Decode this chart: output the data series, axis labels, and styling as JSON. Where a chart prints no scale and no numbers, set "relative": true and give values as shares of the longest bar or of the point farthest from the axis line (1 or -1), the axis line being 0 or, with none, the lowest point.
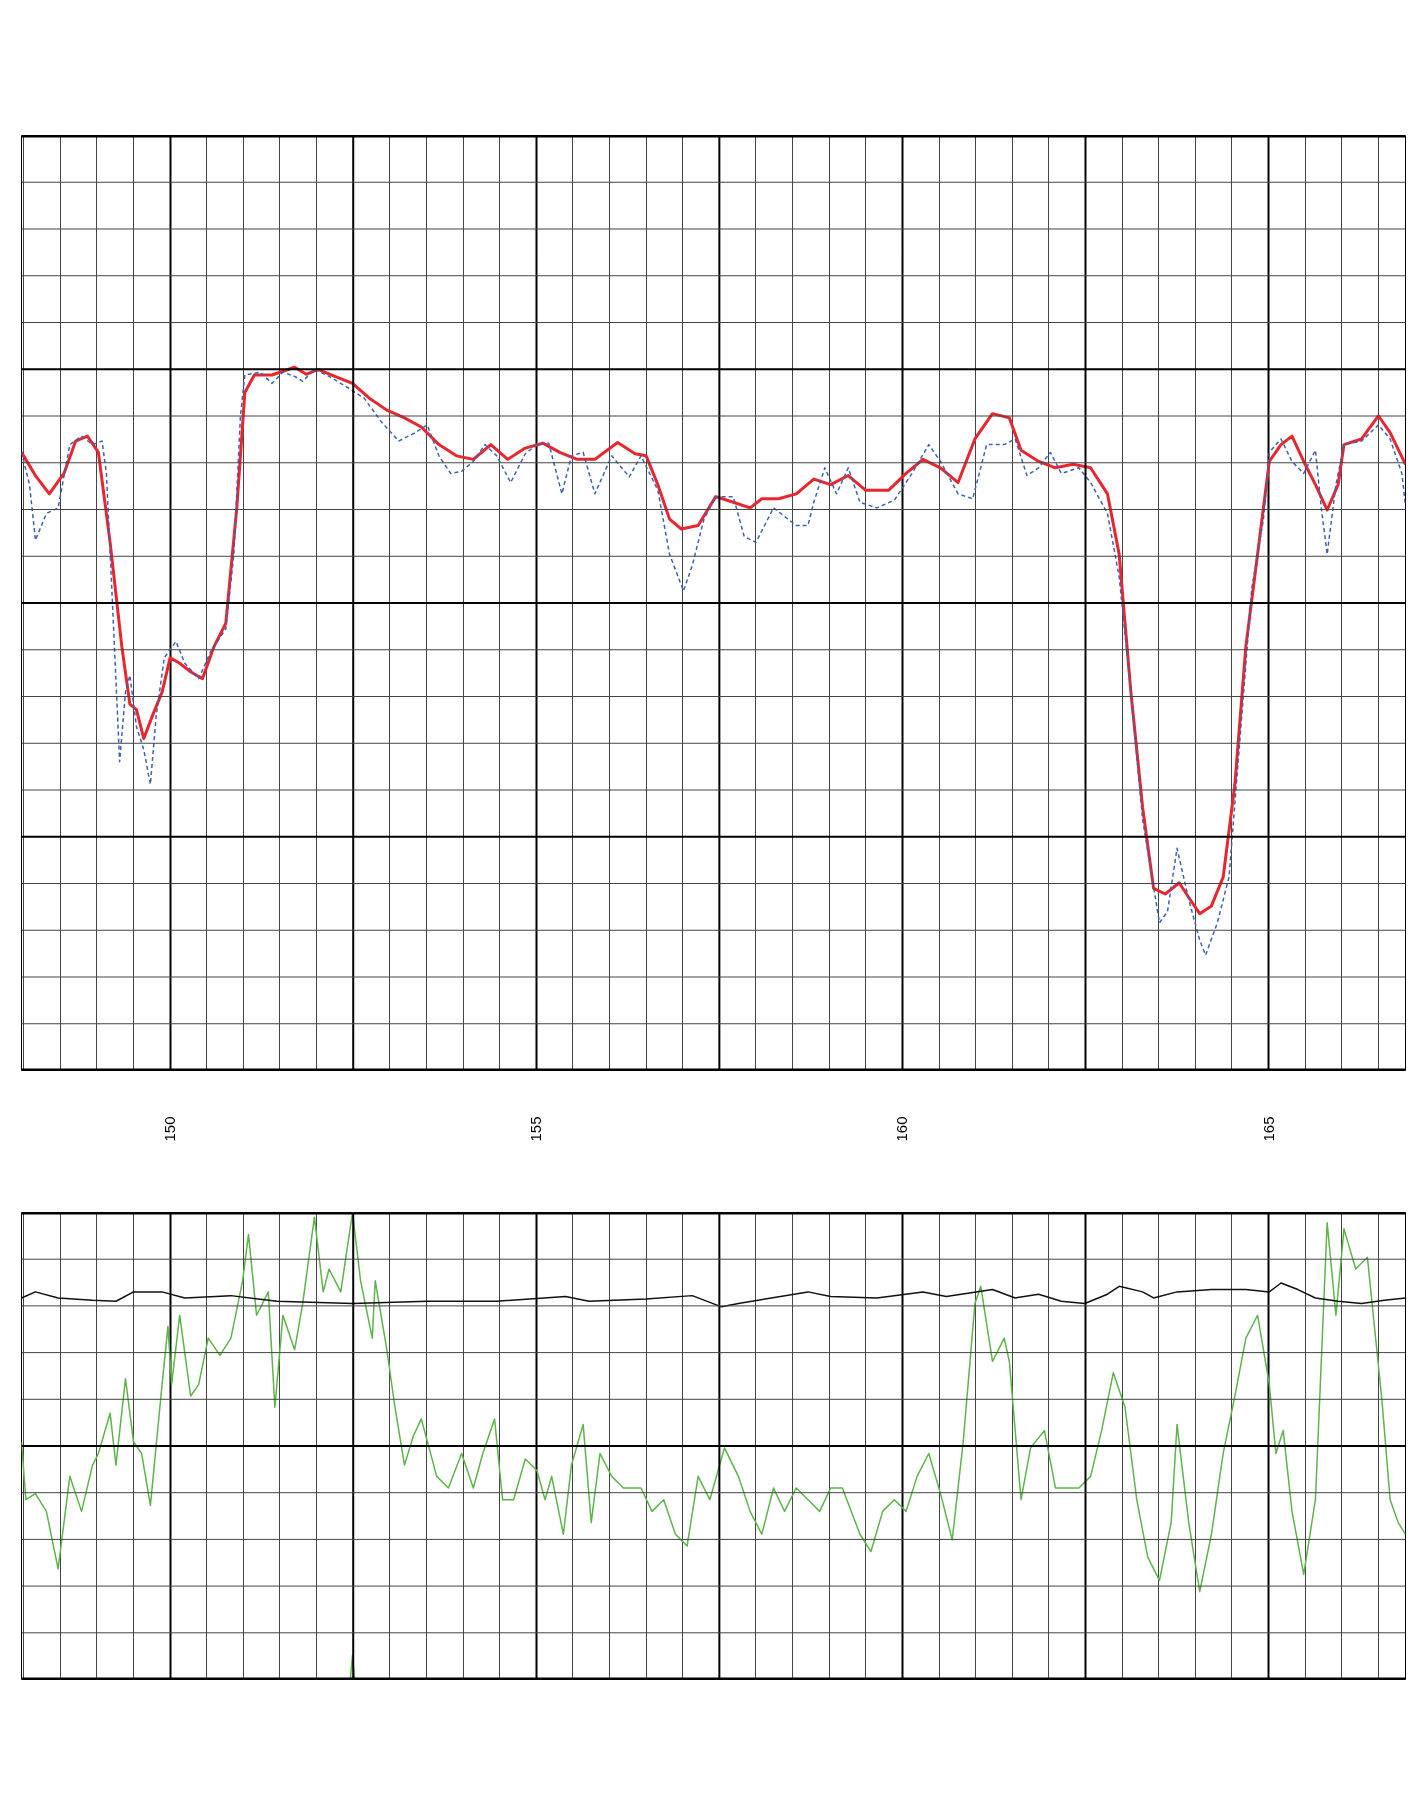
{
  "chart_data": [
    {
      "type": "line",
      "relative": true,
      "xlim": [
        147.97,
        166.87
      ],
      "xticks": [
        150,
        155,
        160,
        165
      ],
      "grid": true,
      "tick_labels": "x",
      "marker": "none",
      "series": [
        {
          "color": "#e8262d",
          "line_style": "solid",
          "x": [
            147.97,
            148.16,
            148.35,
            148.55,
            148.71,
            148.87,
            149.02,
            149.18,
            149.34,
            149.45,
            149.54,
            149.64,
            149.76,
            149.89,
            150.0,
            150.13,
            150.28,
            150.44,
            150.6,
            150.76,
            150.91,
            151.02,
            151.15,
            151.39,
            151.7,
            151.86,
            152.02,
            152.25,
            152.49,
            152.72,
            152.96,
            153.2,
            153.43,
            153.67,
            153.91,
            154.14,
            154.38,
            154.61,
            154.85,
            155.09,
            155.32,
            155.56,
            155.8,
            156.11,
            156.35,
            156.5,
            156.66,
            156.82,
            156.98,
            157.21,
            157.45,
            157.69,
            157.92,
            158.08,
            158.31,
            158.55,
            158.79,
            159.02,
            159.26,
            159.5,
            159.81,
            160.05,
            160.28,
            160.52,
            160.76,
            160.99,
            161.23,
            161.46,
            161.62,
            161.86,
            162.09,
            162.33,
            162.57,
            162.8,
            162.96,
            163.12,
            163.28,
            163.43,
            163.59,
            163.78,
            163.91,
            164.06,
            164.22,
            164.38,
            164.54,
            164.69,
            164.85,
            165.01,
            165.17,
            165.32,
            165.48,
            165.64,
            165.8,
            165.95,
            166.03,
            166.27,
            166.5,
            166.66,
            166.87
          ],
          "values": [
            0.879,
            0.846,
            0.82,
            0.849,
            0.895,
            0.902,
            0.879,
            0.751,
            0.603,
            0.521,
            0.513,
            0.472,
            0.505,
            0.538,
            0.587,
            0.579,
            0.567,
            0.557,
            0.603,
            0.636,
            0.8,
            0.964,
            0.989,
            0.989,
            1.0,
            0.99,
            0.997,
            0.987,
            0.977,
            0.956,
            0.939,
            0.928,
            0.915,
            0.89,
            0.874,
            0.869,
            0.89,
            0.869,
            0.885,
            0.892,
            0.879,
            0.869,
            0.869,
            0.893,
            0.877,
            0.874,
            0.833,
            0.784,
            0.77,
            0.775,
            0.816,
            0.808,
            0.8,
            0.813,
            0.813,
            0.82,
            0.841,
            0.833,
            0.846,
            0.825,
            0.825,
            0.849,
            0.869,
            0.857,
            0.836,
            0.898,
            0.934,
            0.928,
            0.882,
            0.866,
            0.857,
            0.862,
            0.857,
            0.82,
            0.734,
            0.538,
            0.374,
            0.259,
            0.251,
            0.267,
            0.246,
            0.223,
            0.234,
            0.275,
            0.407,
            0.603,
            0.734,
            0.866,
            0.89,
            0.902,
            0.866,
            0.833,
            0.797,
            0.833,
            0.89,
            0.898,
            0.931,
            0.907,
            0.862
          ]
        },
        {
          "color": "#3a62b5",
          "line_style": "dashed",
          "x": [
            147.97,
            148.08,
            148.16,
            148.31,
            148.47,
            148.63,
            148.79,
            148.94,
            149.07,
            149.13,
            149.21,
            149.31,
            149.39,
            149.45,
            149.54,
            149.64,
            149.73,
            149.81,
            149.92,
            150.08,
            150.2,
            150.39,
            150.55,
            150.76,
            150.87,
            150.96,
            151.02,
            151.23,
            151.39,
            151.54,
            151.7,
            151.81,
            151.97,
            152.17,
            152.41,
            152.65,
            152.88,
            153.12,
            153.35,
            153.51,
            153.67,
            153.83,
            153.98,
            154.14,
            154.3,
            154.46,
            154.65,
            154.85,
            155.01,
            155.17,
            155.35,
            155.48,
            155.64,
            155.8,
            156.03,
            156.27,
            156.43,
            156.66,
            156.82,
            157.01,
            157.13,
            157.29,
            157.45,
            157.69,
            157.84,
            158.0,
            158.24,
            158.55,
            158.71,
            158.79,
            158.94,
            159.1,
            159.26,
            159.42,
            159.65,
            159.89,
            160.13,
            160.36,
            160.52,
            160.76,
            160.96,
            161.15,
            161.39,
            161.54,
            161.7,
            161.86,
            162.02,
            162.17,
            162.41,
            162.57,
            162.8,
            162.96,
            163.12,
            163.28,
            163.51,
            163.62,
            163.75,
            163.91,
            164.06,
            164.14,
            164.3,
            164.46,
            164.61,
            164.77,
            164.93,
            165.01,
            165.17,
            165.32,
            165.48,
            165.64,
            165.72,
            165.8,
            165.92,
            166.03,
            166.27,
            166.5,
            166.66,
            166.82,
            166.87
          ],
          "values": [
            0.879,
            0.833,
            0.754,
            0.792,
            0.8,
            0.89,
            0.902,
            0.89,
            0.895,
            0.849,
            0.669,
            0.439,
            0.538,
            0.562,
            0.489,
            0.456,
            0.407,
            0.505,
            0.587,
            0.61,
            0.579,
            0.557,
            0.595,
            0.628,
            0.734,
            0.931,
            0.989,
            0.993,
            0.977,
            0.993,
            0.987,
            0.98,
            0.997,
            0.987,
            0.972,
            0.956,
            0.923,
            0.895,
            0.907,
            0.918,
            0.874,
            0.849,
            0.852,
            0.866,
            0.89,
            0.874,
            0.836,
            0.877,
            0.89,
            0.892,
            0.82,
            0.874,
            0.879,
            0.82,
            0.874,
            0.844,
            0.874,
            0.825,
            0.734,
            0.682,
            0.718,
            0.784,
            0.816,
            0.816,
            0.759,
            0.751,
            0.8,
            0.775,
            0.775,
            0.808,
            0.857,
            0.82,
            0.857,
            0.808,
            0.8,
            0.811,
            0.849,
            0.89,
            0.866,
            0.82,
            0.813,
            0.89,
            0.89,
            0.898,
            0.846,
            0.857,
            0.879,
            0.849,
            0.857,
            0.836,
            0.792,
            0.702,
            0.538,
            0.357,
            0.21,
            0.226,
            0.316,
            0.243,
            0.185,
            0.164,
            0.21,
            0.275,
            0.472,
            0.685,
            0.784,
            0.879,
            0.898,
            0.866,
            0.849,
            0.882,
            0.8,
            0.734,
            0.833,
            0.89,
            0.895,
            0.918,
            0.898,
            0.849,
            0.803
          ]
        }
      ]
    },
    {
      "type": "line",
      "relative": true,
      "xlim": [
        147.97,
        166.87
      ],
      "xticks": [
        150,
        155,
        160,
        165
      ],
      "grid": true,
      "tick_labels": false,
      "marker": "none",
      "series": [
        {
          "color": "#5db54a",
          "line_style": "solid",
          "x": [
            147.97,
            148.03,
            148.16,
            148.31,
            148.47,
            148.63,
            148.79,
            148.94,
            149.02,
            149.18,
            149.26,
            149.39,
            149.5,
            149.61,
            149.73,
            149.89,
            149.97,
            150.02,
            150.13,
            150.28,
            150.39,
            150.52,
            150.68,
            150.83,
            150.99,
            151.07,
            151.18,
            151.34,
            151.43,
            151.54,
            151.7,
            151.81,
            151.97,
            152.09,
            152.17,
            152.33,
            152.49,
            152.6,
            152.76,
            152.8,
            152.96,
            153.07,
            153.2,
            153.32,
            153.43,
            153.64,
            153.8,
            153.98,
            154.14,
            154.27,
            154.43,
            154.54,
            154.69,
            154.85,
            155.01,
            155.12,
            155.21,
            155.37,
            155.48,
            155.64,
            155.75,
            155.87,
            156.03,
            156.19,
            156.43,
            156.58,
            156.74,
            156.9,
            157.06,
            157.21,
            157.37,
            157.57,
            157.76,
            157.92,
            158.08,
            158.24,
            158.39,
            158.55,
            158.71,
            158.87,
            159.02,
            159.18,
            159.42,
            159.57,
            159.73,
            159.89,
            160.05,
            160.2,
            160.36,
            160.52,
            160.68,
            160.83,
            160.99,
            161.07,
            161.23,
            161.39,
            161.46,
            161.62,
            161.75,
            161.94,
            162.09,
            162.25,
            162.41,
            162.57,
            162.72,
            162.88,
            163.04,
            163.2,
            163.35,
            163.51,
            163.67,
            163.75,
            163.91,
            164.06,
            164.22,
            164.38,
            164.54,
            164.69,
            164.85,
            165.01,
            165.1,
            165.2,
            165.32,
            165.48,
            165.64,
            165.8,
            165.92,
            166.03,
            166.19,
            166.35,
            166.43,
            166.55,
            166.66,
            166.77,
            166.87
          ],
          "values": [
            0.509,
            0.385,
            0.398,
            0.36,
            0.237,
            0.435,
            0.36,
            0.459,
            0.484,
            0.57,
            0.459,
            0.644,
            0.509,
            0.484,
            0.373,
            0.632,
            0.756,
            0.632,
            0.78,
            0.607,
            0.632,
            0.731,
            0.694,
            0.731,
            0.854,
            0.953,
            0.78,
            0.83,
            0.583,
            0.78,
            0.706,
            0.805,
            0.99,
            0.83,
            0.879,
            0.83,
            1.0,
            0.854,
            0.731,
            0.854,
            0.706,
            0.583,
            0.459,
            0.521,
            0.558,
            0.435,
            0.41,
            0.484,
            0.41,
            0.484,
            0.558,
            0.385,
            0.385,
            0.472,
            0.447,
            0.385,
            0.435,
            0.311,
            0.459,
            0.546,
            0.336,
            0.484,
            0.435,
            0.41,
            0.41,
            0.36,
            0.385,
            0.311,
            0.286,
            0.435,
            0.385,
            0.496,
            0.435,
            0.36,
            0.311,
            0.41,
            0.36,
            0.41,
            0.385,
            0.36,
            0.41,
            0.41,
            0.311,
            0.274,
            0.36,
            0.385,
            0.36,
            0.435,
            0.484,
            0.398,
            0.299,
            0.509,
            0.805,
            0.842,
            0.681,
            0.731,
            0.681,
            0.385,
            0.496,
            0.533,
            0.41,
            0.41,
            0.41,
            0.435,
            0.533,
            0.657,
            0.583,
            0.385,
            0.262,
            0.212,
            0.336,
            0.546,
            0.336,
            0.188,
            0.311,
            0.484,
            0.607,
            0.731,
            0.78,
            0.632,
            0.484,
            0.533,
            0.36,
            0.225,
            0.385,
            0.978,
            0.78,
            0.965,
            0.879,
            0.904,
            0.78,
            0.595,
            0.385,
            0.336,
            0.311
          ]
        },
        {
          "color": "#5db54a",
          "line_style": "solid",
          "x": [
            152.46,
            152.49,
            152.52
          ],
          "values": [
            0.0,
            0.052,
            0.0
          ]
        },
        {
          "color": "#111111",
          "line_style": "solid",
          "x": [
            147.97,
            148.16,
            148.47,
            148.94,
            149.26,
            149.5,
            149.89,
            150.2,
            150.83,
            151.46,
            152.49,
            153.51,
            154.46,
            155.4,
            155.72,
            156.5,
            157.13,
            157.53,
            157.76,
            158.71,
            159.02,
            159.65,
            160.28,
            160.6,
            161.23,
            161.54,
            161.86,
            162.17,
            162.49,
            162.8,
            162.96,
            163.28,
            163.43,
            163.75,
            164.22,
            164.69,
            165.01,
            165.17,
            165.4,
            165.64,
            165.95,
            166.27,
            166.58,
            166.87
          ],
          "values": [
            0.817,
            0.83,
            0.817,
            0.812,
            0.81,
            0.83,
            0.83,
            0.817,
            0.822,
            0.81,
            0.805,
            0.81,
            0.81,
            0.82,
            0.81,
            0.815,
            0.822,
            0.798,
            0.805,
            0.83,
            0.82,
            0.817,
            0.83,
            0.82,
            0.835,
            0.817,
            0.825,
            0.81,
            0.805,
            0.825,
            0.842,
            0.83,
            0.817,
            0.83,
            0.835,
            0.835,
            0.83,
            0.849,
            0.835,
            0.817,
            0.81,
            0.805,
            0.812,
            0.817
          ]
        }
      ]
    }
  ]
}
